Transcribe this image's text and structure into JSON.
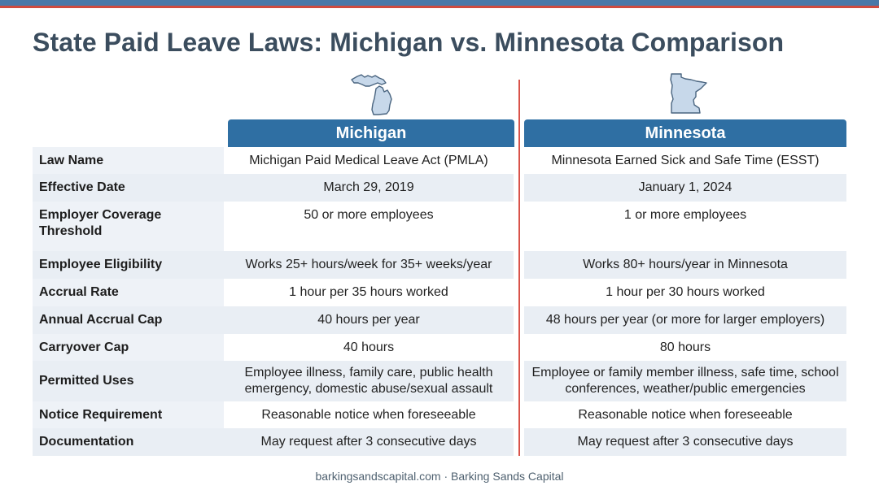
{
  "title": "State Paid Leave Laws: Michigan vs. Minnesota Comparison",
  "colors": {
    "accent_blue": "#2f6fa3",
    "accent_red": "#d9534a",
    "title": "#3b4d5e",
    "row_shade": "#e9eef4"
  },
  "columns": {
    "michigan": {
      "label": "Michigan",
      "icon": "michigan-state-icon"
    },
    "minnesota": {
      "label": "Minnesota",
      "icon": "minnesota-state-icon"
    }
  },
  "rows": [
    {
      "label": "Law Name",
      "michigan": "Michigan Paid Medical Leave Act (PMLA)",
      "minnesota": "Minnesota Earned Sick and Safe Time (ESST)"
    },
    {
      "label": "Effective Date",
      "michigan": "March 29, 2019",
      "minnesota": "January 1, 2024"
    },
    {
      "label": "Employer Coverage Threshold",
      "michigan": "50 or more employees",
      "minnesota": "1 or more employees"
    },
    {
      "label": "Employee Eligibility",
      "michigan": "Works 25+ hours/week for 35+ weeks/year",
      "minnesota": "Works 80+ hours/year in Minnesota"
    },
    {
      "label": "Accrual Rate",
      "michigan": "1 hour per 35 hours worked",
      "minnesota": "1 hour per 30 hours worked"
    },
    {
      "label": "Annual Accrual Cap",
      "michigan": "40 hours per year",
      "minnesota": "48 hours per year (or more for larger employers)"
    },
    {
      "label": "Carryover Cap",
      "michigan": "40 hours",
      "minnesota": "80 hours"
    },
    {
      "label": "Permitted Uses",
      "michigan": "Employee illness, family care, public health emergency, domestic abuse/sexual assault",
      "minnesota": "Employee or family member illness, safe time, school conferences, weather/public emergencies"
    },
    {
      "label": "Notice Requirement",
      "michigan": "Reasonable notice when foreseeable",
      "minnesota": "Reasonable notice when foreseeable"
    },
    {
      "label": "Documentation",
      "michigan": "May request after 3 consecutive days",
      "minnesota": "May request after 3 consecutive days"
    }
  ],
  "footer": "barkingsandscapital.com · Barking Sands Capital"
}
